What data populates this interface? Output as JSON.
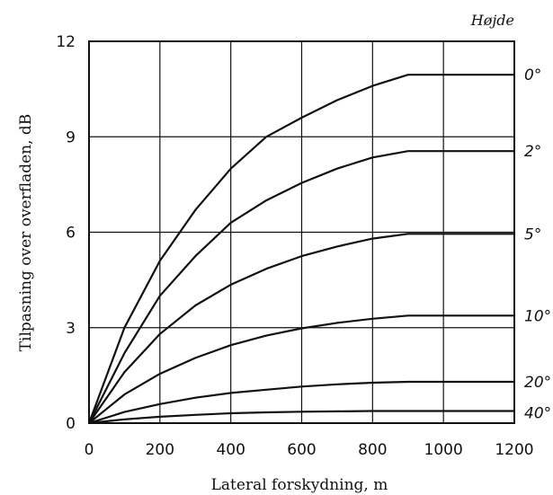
{
  "chart_data": {
    "type": "line",
    "title": "",
    "xlabel": "Lateral forskydning, m",
    "ylabel": "Tilpasning over overfladen, dB",
    "xlim": [
      0,
      1200
    ],
    "ylim": [
      0,
      12
    ],
    "xticks": [
      0,
      200,
      400,
      600,
      800,
      1000,
      1200
    ],
    "yticks": [
      0,
      3,
      6,
      9,
      12
    ],
    "grid": true,
    "legend_title": "Højde",
    "series": [
      {
        "name": "0°",
        "x": [
          0,
          100,
          200,
          300,
          400,
          500,
          600,
          700,
          800,
          900,
          1000,
          1200
        ],
        "y": [
          0,
          3.0,
          5.1,
          6.7,
          8.0,
          9.0,
          9.6,
          10.15,
          10.6,
          10.95,
          10.95,
          10.95
        ]
      },
      {
        "name": "2°",
        "x": [
          0,
          100,
          200,
          300,
          400,
          500,
          600,
          700,
          800,
          900,
          1000,
          1200
        ],
        "y": [
          0,
          2.2,
          4.0,
          5.25,
          6.3,
          7.0,
          7.55,
          8.0,
          8.35,
          8.55,
          8.55,
          8.55
        ]
      },
      {
        "name": "5°",
        "x": [
          0,
          100,
          200,
          300,
          400,
          500,
          600,
          700,
          800,
          900,
          1000,
          1200
        ],
        "y": [
          0,
          1.6,
          2.8,
          3.7,
          4.35,
          4.85,
          5.25,
          5.55,
          5.8,
          5.95,
          5.95,
          5.95
        ]
      },
      {
        "name": "10°",
        "x": [
          0,
          100,
          200,
          300,
          400,
          500,
          600,
          700,
          800,
          900,
          1000,
          1200
        ],
        "y": [
          0,
          0.9,
          1.55,
          2.05,
          2.45,
          2.75,
          2.98,
          3.15,
          3.28,
          3.38,
          3.38,
          3.38
        ]
      },
      {
        "name": "20°",
        "x": [
          0,
          100,
          200,
          300,
          400,
          500,
          600,
          700,
          800,
          900,
          1000,
          1200
        ],
        "y": [
          0,
          0.35,
          0.6,
          0.8,
          0.95,
          1.05,
          1.15,
          1.22,
          1.27,
          1.3,
          1.3,
          1.3
        ]
      },
      {
        "name": "40°",
        "x": [
          0,
          100,
          200,
          300,
          400,
          500,
          600,
          700,
          800,
          900,
          1000,
          1200
        ],
        "y": [
          0,
          0.12,
          0.2,
          0.26,
          0.31,
          0.34,
          0.36,
          0.37,
          0.38,
          0.38,
          0.38,
          0.38
        ]
      }
    ]
  }
}
